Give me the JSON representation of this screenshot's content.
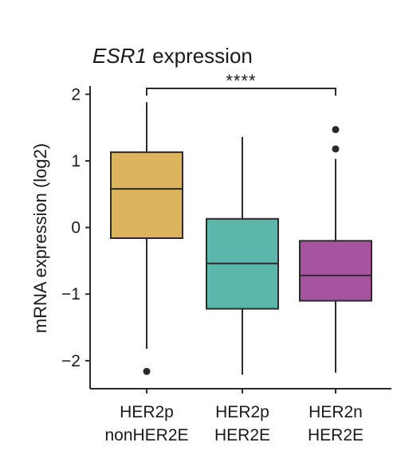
{
  "chart_data": {
    "type": "boxplot",
    "title": {
      "gene": "ESR1",
      "text": " expression"
    },
    "ylabel": "mRNA expression (log2)",
    "xlabel": "",
    "ylim": [
      -2.42,
      2.1
    ],
    "yticks": [
      2,
      1,
      0,
      -1,
      -2
    ],
    "ytick_labels": [
      "2",
      "1",
      "0",
      "−1",
      "−2"
    ],
    "grid": false,
    "legend": "none",
    "categories": [
      {
        "line1": "HER2p",
        "line2": "nonHER2E"
      },
      {
        "line1": "HER2p",
        "line2": "HER2E"
      },
      {
        "line1": "HER2n",
        "line2": "HER2E"
      }
    ],
    "series": [
      {
        "color": "#DDB45E",
        "whisker_low": -1.82,
        "q1": -0.16,
        "median": 0.58,
        "q3": 1.13,
        "whisker_high": 1.88,
        "outliers": [
          -2.16
        ]
      },
      {
        "color": "#5BB6AC",
        "whisker_low": -2.21,
        "q1": -1.22,
        "median": -0.54,
        "q3": 0.13,
        "whisker_high": 1.36,
        "outliers": []
      },
      {
        "color": "#A654A0",
        "whisker_low": -2.18,
        "q1": -1.1,
        "median": -0.72,
        "q3": -0.2,
        "whisker_high": 1.03,
        "outliers": [
          1.18,
          1.47
        ]
      }
    ],
    "annotations": [
      {
        "from": 0,
        "to": 2,
        "label": "****"
      }
    ]
  }
}
